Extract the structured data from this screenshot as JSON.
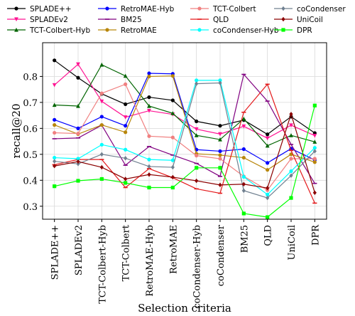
{
  "chart_data": {
    "type": "line",
    "title": "",
    "xlabel": "Selection criteria",
    "ylabel": "recall@20",
    "ylim": [
      0.25,
      0.93
    ],
    "yticks": [
      0.3,
      0.4,
      0.5,
      0.6,
      0.7,
      0.8
    ],
    "grid": true,
    "legend_position": "top",
    "categories": [
      "SPLADE++",
      "SPLADEv2",
      "TCT-Colbert-Hyb",
      "TCT-Colbert",
      "RetroMAE-Hyb",
      "RetroMAE",
      "coCondenser-Hyb",
      "coCondenser",
      "BM25",
      "QLD",
      "UniCoil",
      "DPR"
    ],
    "series": [
      {
        "name": "SPLADE++",
        "color": "#000000",
        "marker": "circle",
        "values": [
          0.862,
          0.795,
          0.733,
          0.693,
          0.72,
          0.708,
          0.627,
          0.61,
          0.632,
          0.577,
          0.645,
          0.582
        ]
      },
      {
        "name": "SPLADEv2",
        "color": "#ff1493",
        "marker": "triangle-down",
        "values": [
          0.767,
          0.847,
          0.704,
          0.643,
          0.668,
          0.654,
          0.597,
          0.578,
          0.608,
          0.562,
          0.612,
          0.572
        ]
      },
      {
        "name": "TCT-Colbert-Hyb",
        "color": "#006400",
        "marker": "triangle-up",
        "values": [
          0.69,
          0.686,
          0.845,
          0.802,
          0.686,
          0.658,
          0.573,
          0.557,
          0.637,
          0.533,
          0.573,
          0.548
        ]
      },
      {
        "name": "RetroMAE-Hyb",
        "color": "#0000ff",
        "marker": "circle",
        "values": [
          0.633,
          0.6,
          0.645,
          0.61,
          0.812,
          0.81,
          0.518,
          0.512,
          0.52,
          0.467,
          0.522,
          0.478
        ]
      },
      {
        "name": "BM25",
        "color": "#800080",
        "marker": "dash",
        "values": [
          0.56,
          0.563,
          0.612,
          0.458,
          0.53,
          0.497,
          0.465,
          0.415,
          0.808,
          0.705,
          0.538,
          0.388
        ]
      },
      {
        "name": "RetroMAE",
        "color": "#b8860b",
        "marker": "circle",
        "values": [
          0.613,
          0.578,
          0.613,
          0.585,
          0.8,
          0.802,
          0.502,
          0.497,
          0.487,
          0.44,
          0.5,
          0.47
        ]
      },
      {
        "name": "TCT-Colbert",
        "color": "#f08080",
        "marker": "circle",
        "values": [
          0.583,
          0.58,
          0.735,
          0.77,
          0.57,
          0.565,
          0.495,
          0.483,
          0.415,
          0.362,
          0.483,
          0.483
        ]
      },
      {
        "name": "QLD",
        "color": "#e41a1c",
        "marker": "dash",
        "values": [
          0.46,
          0.48,
          0.48,
          0.372,
          0.445,
          0.41,
          0.367,
          0.35,
          0.662,
          0.77,
          0.515,
          0.312
        ]
      },
      {
        "name": "coCondenser-Hyb",
        "color": "#00ffff",
        "marker": "circle",
        "values": [
          0.487,
          0.483,
          0.537,
          0.518,
          0.48,
          0.477,
          0.785,
          0.785,
          0.413,
          0.345,
          0.435,
          0.525
        ]
      },
      {
        "name": "coCondenser",
        "color": "#708090",
        "marker": "diamond",
        "values": [
          0.473,
          0.463,
          0.5,
          0.485,
          0.453,
          0.45,
          0.772,
          0.775,
          0.36,
          0.332,
          0.418,
          0.512
        ]
      },
      {
        "name": "UniCoil",
        "color": "#8b0000",
        "marker": "diamond",
        "values": [
          0.455,
          0.472,
          0.45,
          0.405,
          0.422,
          0.412,
          0.398,
          0.382,
          0.385,
          0.37,
          0.655,
          0.352
        ]
      },
      {
        "name": "DPR",
        "color": "#00ff00",
        "marker": "square",
        "values": [
          0.377,
          0.398,
          0.405,
          0.39,
          0.372,
          0.372,
          0.448,
          0.448,
          0.272,
          0.258,
          0.332,
          0.688
        ]
      }
    ]
  }
}
